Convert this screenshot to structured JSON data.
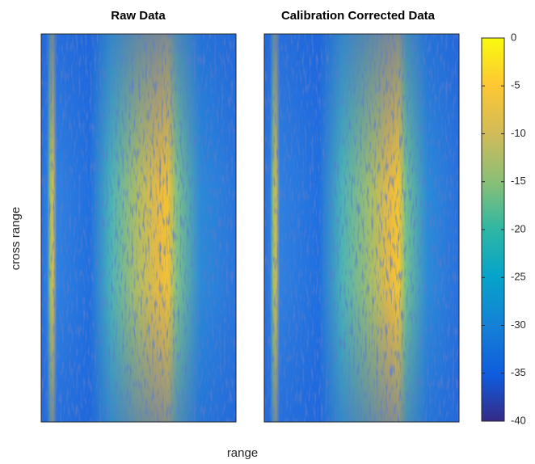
{
  "chart_data": [
    {
      "type": "heatmap",
      "title": "Raw Data"
    },
    {
      "type": "heatmap",
      "title": "Calibration Corrected Data"
    }
  ],
  "xlabel": "range",
  "ylabel": "cross range",
  "colorbar": {
    "clim": [
      -40,
      0
    ],
    "ticks": [
      0,
      -5,
      -10,
      -15,
      -20,
      -25,
      -30,
      -35,
      -40
    ],
    "colormap": "parula"
  }
}
